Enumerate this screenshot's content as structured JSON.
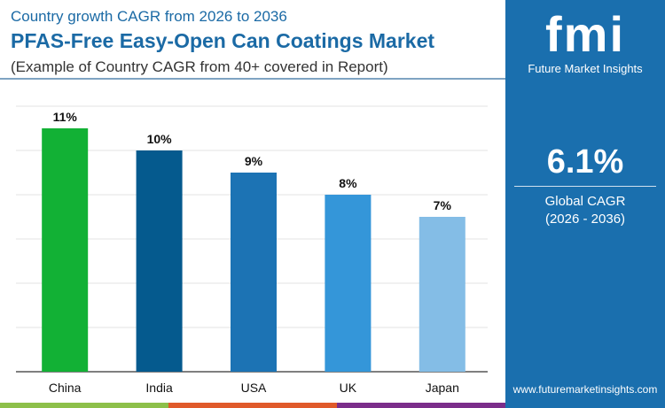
{
  "header": {
    "subtitle": "Country growth CAGR from 2026 to 2036",
    "title": "PFAS-Free Easy-Open Can Coatings Market",
    "note": "(Example of Country CAGR from 40+ covered in Report)"
  },
  "panel": {
    "logo": "fmi",
    "logo_text": "Future Market Insights",
    "cagr_value": "6.1%",
    "cagr_label": "Global CAGR",
    "cagr_period": "(2026 - 2036)",
    "url": "www.futuremarketinsights.com",
    "background": "#1a6fae"
  },
  "chart_data": {
    "type": "bar",
    "categories": [
      "China",
      "India",
      "USA",
      "UK",
      "Japan"
    ],
    "values": [
      11,
      10,
      9,
      8,
      7
    ],
    "labels": [
      "11%",
      "10%",
      "9%",
      "8%",
      "7%"
    ],
    "colors": [
      "#12b135",
      "#055a8e",
      "#1c73b4",
      "#3496d9",
      "#84bde6"
    ],
    "ylim": [
      0,
      12
    ],
    "grid": true,
    "title": "",
    "xlabel": "",
    "ylabel": ""
  }
}
